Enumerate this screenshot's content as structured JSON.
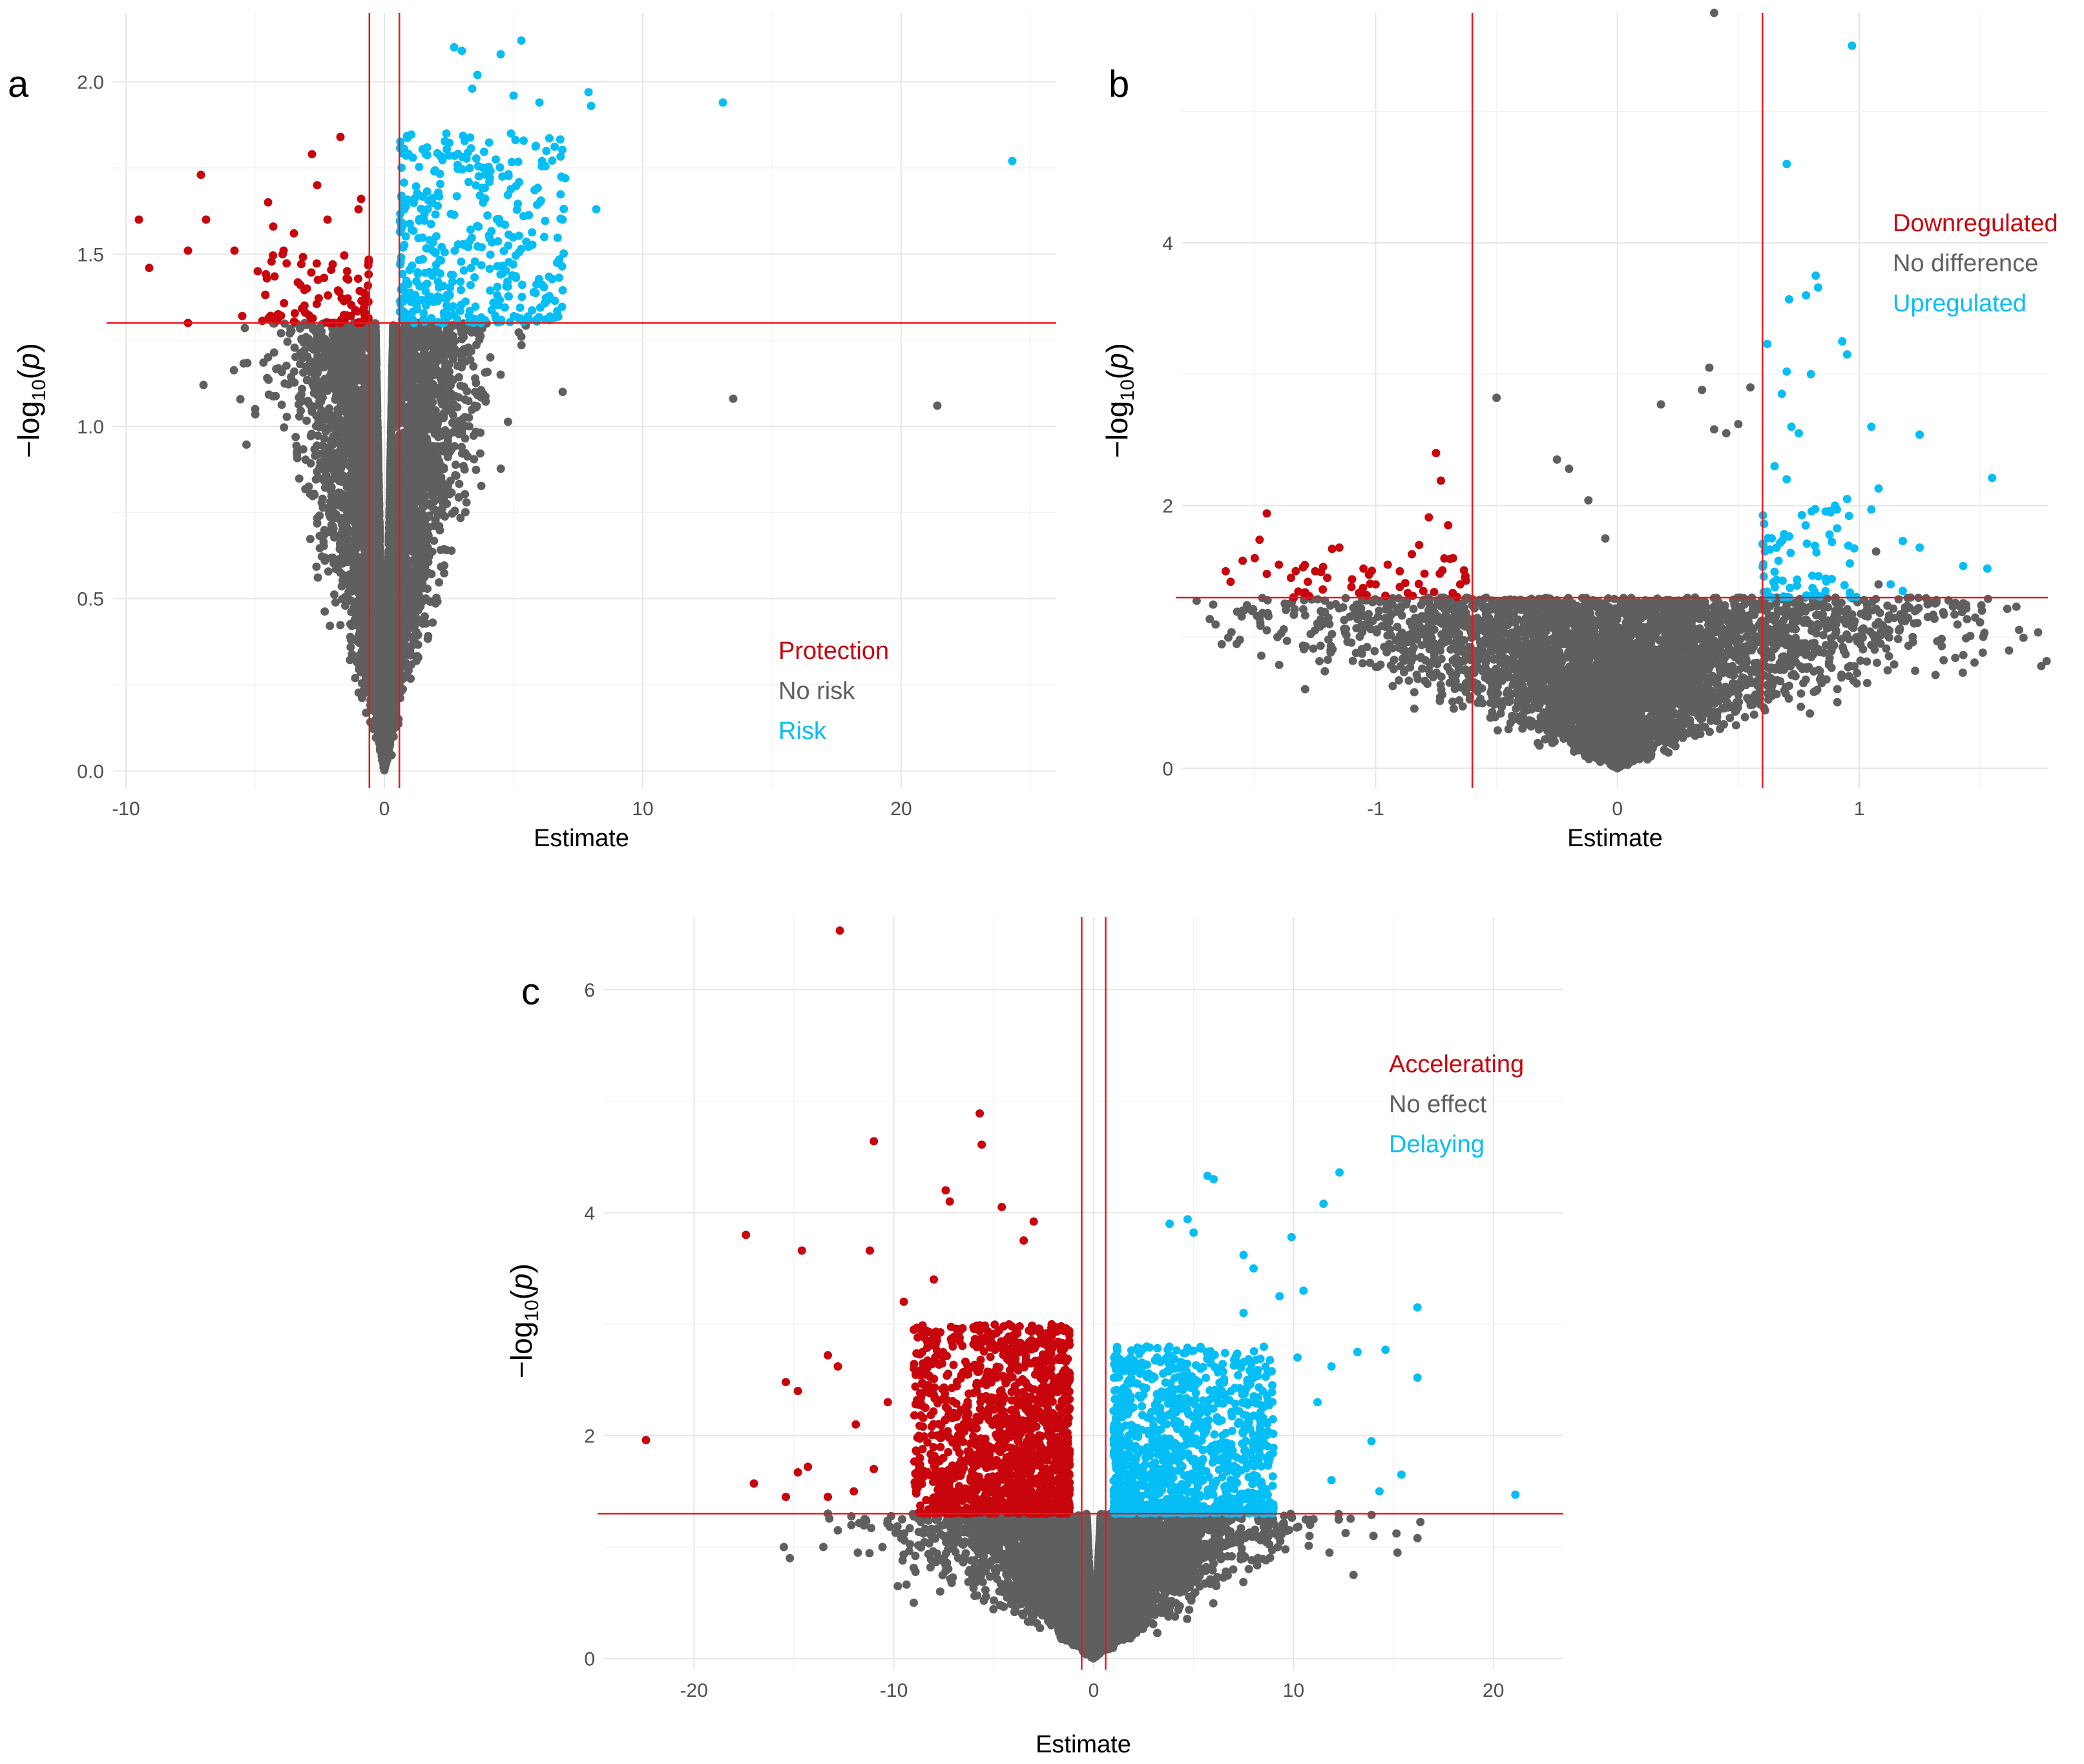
{
  "colors": {
    "down": "#c8050c",
    "none": "#5f5f5f",
    "up": "#05bef5",
    "threshold": "#e8161b"
  },
  "chart_data": [
    {
      "type": "scatter",
      "panel": "a",
      "title": "",
      "xlabel": "Estimate",
      "ylabel": "−log10(p)",
      "ylabel_parts": {
        "prefix": "−log",
        "sub": "10",
        "arg": "p"
      },
      "xlim": [
        -10.5,
        26
      ],
      "ylim": [
        -0.05,
        2.2
      ],
      "xticks": [
        -10,
        0,
        10,
        20
      ],
      "yticks": [
        0.0,
        0.5,
        1.0,
        1.5,
        2.0
      ],
      "ytick_labels": [
        "0.0",
        "0.5",
        "1.0",
        "1.5",
        "2.0"
      ],
      "thresholds": {
        "x": [
          -0.58,
          0.58
        ],
        "y": 1.3
      },
      "legend": [
        {
          "label": "Protection",
          "color": "#c8050c"
        },
        {
          "label": "No risk",
          "color": "#5f5f5f"
        },
        {
          "label": "Risk",
          "color": "#05bef5"
        }
      ],
      "series": [
        {
          "name": "Protection",
          "color": "#c8050c",
          "points": [
            [
              -9.5,
              1.6
            ],
            [
              -9.1,
              1.46
            ],
            [
              -7.6,
              1.51
            ],
            [
              -7.6,
              1.3
            ],
            [
              -7.1,
              1.73
            ],
            [
              -6.9,
              1.6
            ],
            [
              -5.8,
              1.51
            ],
            [
              -5.5,
              1.32
            ],
            [
              -4.5,
              1.65
            ],
            [
              -4.3,
              1.58
            ],
            [
              -3.9,
              1.51
            ],
            [
              -3.5,
              1.56
            ],
            [
              -2.8,
              1.79
            ],
            [
              -2.6,
              1.7
            ],
            [
              -1.7,
              1.84
            ],
            [
              -1.0,
              1.63
            ],
            [
              -0.9,
              1.66
            ],
            [
              -2.2,
              1.6
            ],
            [
              -4.9,
              1.45
            ],
            [
              -4.2,
              1.32
            ],
            [
              -1.3,
              1.32
            ],
            [
              -3.0,
              1.4
            ],
            [
              -2.0,
              1.47
            ]
          ],
          "cluster": {
            "xmin": -4.8,
            "xmax": -0.6,
            "ymin": 1.3,
            "ymax": 1.5,
            "count": 80
          }
        },
        {
          "name": "Risk",
          "color": "#05bef5",
          "points": [
            [
              2.7,
              2.1
            ],
            [
              3.0,
              2.09
            ],
            [
              4.5,
              2.08
            ],
            [
              5.3,
              2.12
            ],
            [
              3.6,
              2.02
            ],
            [
              3.4,
              1.98
            ],
            [
              5.0,
              1.96
            ],
            [
              6.0,
              1.94
            ],
            [
              7.9,
              1.97
            ],
            [
              8.0,
              1.93
            ],
            [
              13.1,
              1.94
            ],
            [
              24.3,
              1.77
            ],
            [
              8.2,
              1.63
            ],
            [
              1.1,
              1.78
            ],
            [
              7.0,
              1.72
            ],
            [
              6.9,
              1.6
            ],
            [
              6.1,
              1.77
            ],
            [
              4.9,
              1.85
            ],
            [
              2.4,
              1.85
            ],
            [
              1.6,
              1.79
            ]
          ],
          "cluster": {
            "xmin": 0.6,
            "xmax": 7.0,
            "ymin": 1.3,
            "ymax": 1.85,
            "count": 380
          }
        },
        {
          "name": "No risk",
          "color": "#5f5f5f",
          "points": [
            [
              -7.0,
              1.12
            ],
            [
              -4.0,
              1.27
            ],
            [
              -4.5,
              1.2
            ],
            [
              -5.0,
              1.05
            ],
            [
              5.3,
              1.26
            ],
            [
              4.1,
              1.2
            ],
            [
              6.9,
              1.1
            ],
            [
              13.5,
              1.08
            ],
            [
              21.4,
              1.06
            ],
            [
              -2.5,
              1.25
            ],
            [
              -3.1,
              1.22
            ],
            [
              3.6,
              1.27
            ],
            [
              4.5,
              1.15
            ],
            [
              2.8,
              1.0
            ]
          ],
          "cloud": {
            "spread_base": 0.65,
            "spread_slope": 2.8,
            "x_half_gap": 0.58,
            "ymax": 1.3,
            "count": 5500
          }
        }
      ]
    },
    {
      "type": "scatter",
      "panel": "b",
      "title": "",
      "xlabel": "Estimate",
      "ylabel": "−log10(p)",
      "ylabel_parts": {
        "prefix": "−log",
        "sub": "10",
        "arg": "p"
      },
      "xlim": [
        -1.8,
        1.78
      ],
      "ylim": [
        -0.15,
        5.75
      ],
      "xticks": [
        -1,
        0,
        1
      ],
      "yticks": [
        0,
        2,
        4
      ],
      "ytick_labels": [
        "0",
        "2",
        "4"
      ],
      "thresholds": {
        "x": [
          -0.6,
          0.6
        ],
        "y": 1.3
      },
      "legend": [
        {
          "label": "Downregulated",
          "color": "#c8050c"
        },
        {
          "label": "No difference",
          "color": "#5f5f5f"
        },
        {
          "label": "Upregulated",
          "color": "#05bef5"
        }
      ],
      "series": [
        {
          "name": "Downregulated",
          "color": "#c8050c",
          "points": [
            [
              -1.62,
              1.5
            ],
            [
              -1.6,
              1.42
            ],
            [
              -1.55,
              1.58
            ],
            [
              -1.5,
              1.6
            ],
            [
              -1.48,
              1.74
            ],
            [
              -1.45,
              1.94
            ],
            [
              -1.4,
              1.55
            ],
            [
              -1.35,
              1.45
            ],
            [
              -1.3,
              1.53
            ],
            [
              -1.25,
              1.5
            ],
            [
              -1.2,
              1.45
            ],
            [
              -1.18,
              1.67
            ],
            [
              -1.15,
              1.68
            ],
            [
              -1.1,
              1.38
            ],
            [
              -1.05,
              1.52
            ],
            [
              -1.0,
              1.4
            ],
            [
              -0.95,
              1.55
            ],
            [
              -0.9,
              1.5
            ],
            [
              -0.85,
              1.63
            ],
            [
              -0.82,
              1.7
            ],
            [
              -0.78,
              1.91
            ],
            [
              -0.75,
              2.4
            ],
            [
              -0.73,
              2.19
            ],
            [
              -0.7,
              1.85
            ],
            [
              -0.68,
              1.6
            ],
            [
              -0.65,
              1.4
            ],
            [
              -0.63,
              1.45
            ],
            [
              -0.9,
              1.38
            ],
            [
              -1.45,
              1.48
            ],
            [
              -1.28,
              1.42
            ]
          ],
          "cluster": {
            "xmin": -1.4,
            "xmax": -0.62,
            "ymin": 1.3,
            "ymax": 1.6,
            "count": 35
          }
        },
        {
          "name": "Upregulated",
          "color": "#05bef5",
          "points": [
            [
              0.97,
              5.5
            ],
            [
              0.7,
              4.6
            ],
            [
              0.82,
              3.75
            ],
            [
              0.83,
              3.66
            ],
            [
              0.78,
              3.6
            ],
            [
              0.71,
              3.57
            ],
            [
              0.93,
              3.25
            ],
            [
              0.95,
              3.15
            ],
            [
              0.62,
              3.23
            ],
            [
              0.7,
              3.02
            ],
            [
              0.8,
              3.0
            ],
            [
              0.68,
              2.85
            ],
            [
              1.05,
              2.6
            ],
            [
              1.25,
              2.54
            ],
            [
              0.72,
              2.6
            ],
            [
              0.75,
              2.55
            ],
            [
              1.55,
              2.21
            ],
            [
              1.08,
              2.13
            ],
            [
              0.9,
              2.0
            ],
            [
              0.95,
              2.05
            ],
            [
              1.05,
              1.97
            ],
            [
              1.18,
              1.73
            ],
            [
              1.25,
              1.68
            ],
            [
              1.43,
              1.54
            ],
            [
              1.53,
              1.52
            ],
            [
              1.13,
              1.4
            ],
            [
              1.18,
              1.35
            ],
            [
              0.65,
              2.3
            ],
            [
              0.7,
              2.2
            ]
          ],
          "cluster": {
            "xmin": 0.6,
            "xmax": 1.0,
            "ymin": 1.3,
            "ymax": 2.0,
            "count": 70
          }
        },
        {
          "name": "No difference",
          "color": "#5f5f5f",
          "points": [
            [
              0.4,
              5.75
            ],
            [
              -0.5,
              2.82
            ],
            [
              0.38,
              3.05
            ],
            [
              0.35,
              2.88
            ],
            [
              0.18,
              2.77
            ],
            [
              -0.25,
              2.35
            ],
            [
              -0.2,
              2.28
            ],
            [
              0.4,
              2.58
            ],
            [
              -0.12,
              2.04
            ],
            [
              1.65,
              1.23
            ],
            [
              1.07,
              1.65
            ],
            [
              1.08,
              1.4
            ],
            [
              1.02,
              1.28
            ],
            [
              -1.55,
              1.2
            ],
            [
              -1.45,
              1.05
            ],
            [
              -0.05,
              1.75
            ],
            [
              0.55,
              2.9
            ],
            [
              0.5,
              2.62
            ],
            [
              0.45,
              2.55
            ]
          ],
          "cloud": {
            "spread_base": 0.9,
            "spread_slope": 1.3,
            "x_half_gap": 0.0,
            "ymax": 1.3,
            "count": 4500
          }
        }
      ]
    },
    {
      "type": "scatter",
      "panel": "c",
      "title": "",
      "xlabel": "Estimate",
      "ylabel": "−log10(p)",
      "ylabel_parts": {
        "prefix": "−log",
        "sub": "10",
        "arg": "p"
      },
      "xlim": [
        -24.5,
        23.5
      ],
      "ylim": [
        -0.1,
        6.65
      ],
      "xticks": [
        -20,
        -10,
        0,
        10,
        20
      ],
      "yticks": [
        0,
        2,
        4,
        6
      ],
      "ytick_labels": [
        "0",
        "2",
        "4",
        "6"
      ],
      "thresholds": {
        "x": [
          -0.6,
          0.6
        ],
        "y": 1.3
      },
      "legend": [
        {
          "label": "Accelerating",
          "color": "#c8050c"
        },
        {
          "label": "No effect",
          "color": "#5f5f5f"
        },
        {
          "label": "Delaying",
          "color": "#05bef5"
        }
      ],
      "series": [
        {
          "name": "Accelerating",
          "color": "#c8050c",
          "points": [
            [
              -12.7,
              6.53
            ],
            [
              -5.7,
              4.89
            ],
            [
              -5.6,
              4.61
            ],
            [
              -11,
              4.64
            ],
            [
              -17.4,
              3.8
            ],
            [
              -14.6,
              3.66
            ],
            [
              -11.2,
              3.66
            ],
            [
              -7.4,
              4.2
            ],
            [
              -7.2,
              4.1
            ],
            [
              -4.6,
              4.05
            ],
            [
              -15.4,
              2.48
            ],
            [
              -14.8,
              2.4
            ],
            [
              -13.3,
              2.72
            ],
            [
              -12.8,
              2.62
            ],
            [
              -11.9,
              2.1
            ],
            [
              -22.4,
              1.96
            ],
            [
              -17,
              1.57
            ],
            [
              -15.4,
              1.45
            ],
            [
              -14.3,
              1.72
            ],
            [
              -14.8,
              1.67
            ],
            [
              -13.3,
              1.45
            ],
            [
              -9.5,
              3.2
            ],
            [
              -9.0,
              2.95
            ],
            [
              -3.0,
              3.92
            ],
            [
              -3.5,
              3.75
            ],
            [
              -8.0,
              3.4
            ],
            [
              -10.3,
              2.3
            ],
            [
              -11.0,
              1.7
            ],
            [
              -12.0,
              1.5
            ]
          ],
          "cluster": {
            "xmin": -9.0,
            "xmax": -1.2,
            "ymin": 1.3,
            "ymax": 3.0,
            "count": 1400
          }
        },
        {
          "name": "Delaying",
          "color": "#05bef5",
          "points": [
            [
              5.7,
              4.33
            ],
            [
              6.0,
              4.3
            ],
            [
              12.3,
              4.36
            ],
            [
              11.5,
              4.08
            ],
            [
              3.8,
              3.9
            ],
            [
              4.7,
              3.94
            ],
            [
              5.0,
              3.82
            ],
            [
              7.5,
              3.62
            ],
            [
              9.9,
              3.78
            ],
            [
              10.5,
              3.3
            ],
            [
              9.3,
              3.25
            ],
            [
              16.2,
              3.15
            ],
            [
              13.2,
              2.75
            ],
            [
              14.6,
              2.77
            ],
            [
              16.2,
              2.52
            ],
            [
              11.9,
              2.62
            ],
            [
              11.2,
              2.3
            ],
            [
              13.9,
              1.95
            ],
            [
              14.3,
              1.5
            ],
            [
              15.4,
              1.65
            ],
            [
              21.1,
              1.47
            ],
            [
              8.0,
              3.5
            ],
            [
              7.5,
              3.1
            ],
            [
              10.2,
              2.7
            ],
            [
              11.9,
              1.6
            ]
          ],
          "cluster": {
            "xmin": 1.0,
            "xmax": 9.0,
            "ymin": 1.3,
            "ymax": 2.8,
            "count": 1100
          }
        },
        {
          "name": "No effect",
          "color": "#5f5f5f",
          "points": [
            [
              -15.5,
              1.0
            ],
            [
              -15.2,
              0.9
            ],
            [
              -11.8,
              0.95
            ],
            [
              -12.8,
              1.15
            ],
            [
              -7.5,
              0.9
            ],
            [
              -9.0,
              0.5
            ],
            [
              -9.8,
              0.65
            ],
            [
              10.8,
              1.1
            ],
            [
              11.8,
              0.95
            ],
            [
              13.0,
              0.75
            ],
            [
              15.2,
              0.95
            ],
            [
              16.2,
              1.08
            ],
            [
              14.0,
              1.1
            ],
            [
              6.0,
              0.85
            ],
            [
              -13.3,
              1.3
            ],
            [
              11.0,
              1.25
            ]
          ],
          "cloud": {
            "spread_base": 1.0,
            "spread_slope": 8.0,
            "x_half_gap": 0.6,
            "ymax": 1.3,
            "count": 4500
          }
        }
      ]
    }
  ]
}
